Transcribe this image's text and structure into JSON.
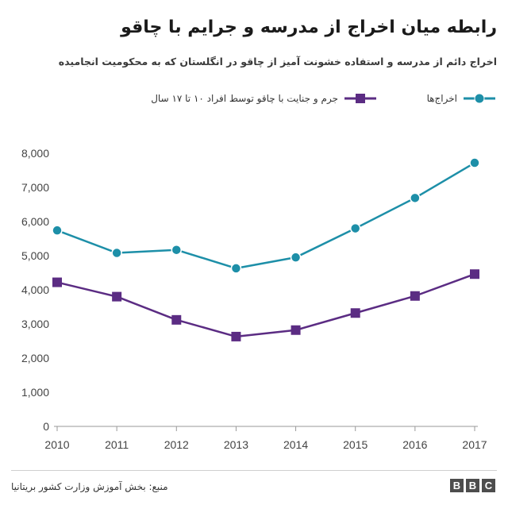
{
  "header": {
    "title": "رابطه میان اخراج از مدرسه و جرایم با چاقو",
    "subtitle": "اخراج دائم از مدرسه و استفاده خشونت آمیز از چاقو در انگلستان که به محکومیت انجامیده"
  },
  "legend": {
    "items": [
      {
        "label": "اخراج‌ها",
        "marker": "circle",
        "color": "#1d8fa8"
      },
      {
        "label": "جرم و جنایت با چاقو توسط افراد ۱۰ تا ۱۷ سال",
        "marker": "square",
        "color": "#5b2c83"
      }
    ]
  },
  "footer": {
    "source": "منبع: بخش آموزش وزارت کشور بریتانیا",
    "logo_letters": [
      "B",
      "B",
      "C"
    ]
  },
  "chart_data": {
    "type": "line",
    "x": [
      2010,
      2011,
      2012,
      2013,
      2014,
      2015,
      2016,
      2017
    ],
    "categories": [
      "2010",
      "2011",
      "2012",
      "2013",
      "2014",
      "2015",
      "2016",
      "2017"
    ],
    "series": [
      {
        "name": "اخراج‌ها",
        "color": "#1d8fa8",
        "marker": "circle",
        "values": [
          5740,
          5080,
          5170,
          4630,
          4950,
          5800,
          6690,
          7720
        ]
      },
      {
        "name": "جرم و جنایت با چاقو توسط افراد ۱۰ تا ۱۷ سال",
        "color": "#5b2c83",
        "marker": "square",
        "values": [
          4220,
          3800,
          3120,
          2630,
          2820,
          3320,
          3820,
          4460
        ]
      }
    ],
    "y_ticks": [
      "8,000",
      "7,000",
      "6,000",
      "5,000",
      "4,000",
      "3,000",
      "2,000",
      "1,000",
      "0"
    ],
    "ylim": [
      0,
      8000
    ],
    "xlabel": "",
    "ylabel": "",
    "grid": false,
    "legend_position": "top"
  }
}
